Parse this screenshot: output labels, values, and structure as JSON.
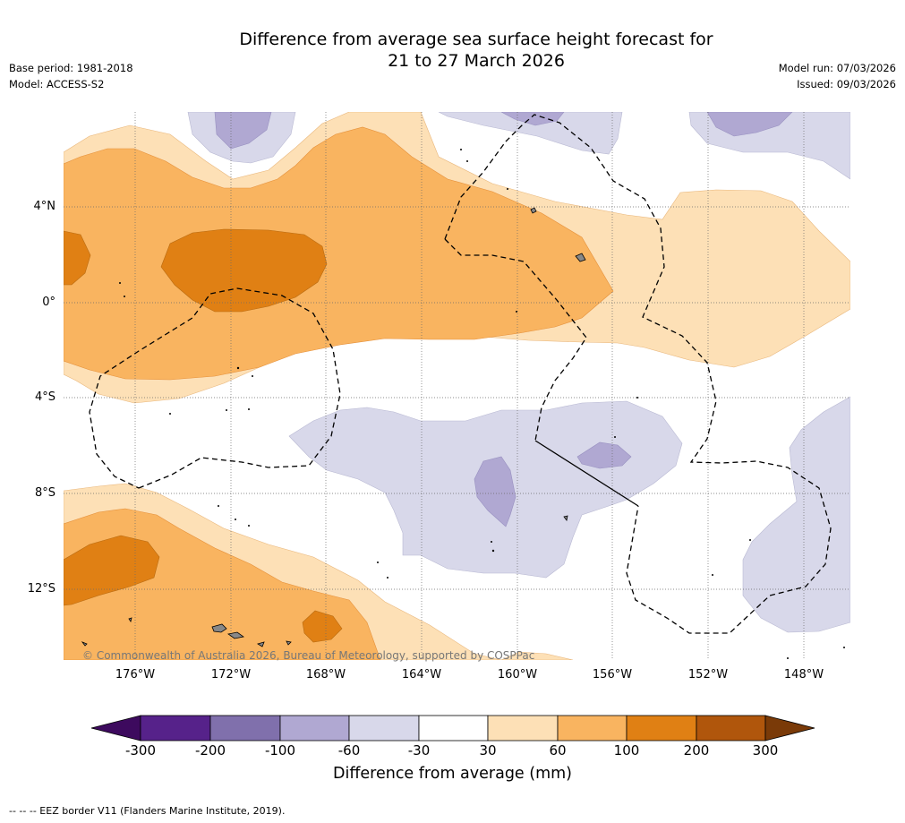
{
  "header": {
    "title_line1": "Difference from average sea surface height forecast for",
    "title_line2": "21 to 27 March 2026",
    "base_period": "Base period: 1981-2018",
    "model": "Model: ACCESS-S2",
    "model_run": "Model run: 07/03/2026",
    "issued": "Issued: 09/03/2026"
  },
  "map": {
    "lat_labels": [
      "4°N",
      "0°",
      "4°S",
      "8°S",
      "12°S"
    ],
    "lon_labels": [
      "176°W",
      "172°W",
      "168°W",
      "164°W",
      "160°W",
      "156°W",
      "152°W",
      "148°W"
    ],
    "copyright": "© Commonwealth of Australia 2026, Bureau of Meteorology, supported by COSPPac"
  },
  "colorbar": {
    "title": "Difference from average (mm)",
    "ticks": [
      "-300",
      "-200",
      "-100",
      "-60",
      "-30",
      "30",
      "60",
      "100",
      "200",
      "300"
    ],
    "colors": [
      "#3d0a5e",
      "#56228a",
      "#8070ac",
      "#b0a8d2",
      "#d8d8ea",
      "#ffffff",
      "#fde0b6",
      "#f9b460",
      "#e08014",
      "#b0560c",
      "#7a3a08"
    ]
  },
  "footer": {
    "eez_note": "--  --  -- EEZ border V11 (Flanders Marine Institute, 2019)."
  }
}
